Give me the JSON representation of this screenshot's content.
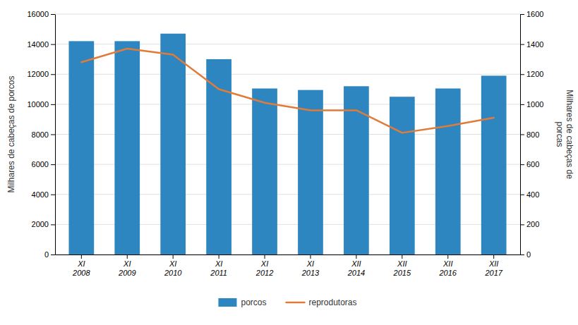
{
  "chart_data": {
    "type": "bar",
    "categories": [
      "XI\n2008",
      "XI\n2009",
      "XI\n2010",
      "XI\n2011",
      "XI\n2012",
      "XI\n2013",
      "XII\n2014",
      "XII\n2015",
      "XII\n2016",
      "XII\n2017"
    ],
    "series": [
      {
        "name": "porcos",
        "type": "bar",
        "color": "#2e86c1",
        "values": [
          14200,
          14200,
          14700,
          13000,
          11050,
          10950,
          11200,
          10500,
          11050,
          11900
        ]
      },
      {
        "name": "reprodutoras",
        "type": "line",
        "color": "#e07b39",
        "axis": "y2",
        "values": [
          1280,
          1370,
          1330,
          1100,
          1010,
          960,
          960,
          810,
          855,
          910
        ]
      }
    ],
    "y_label": "Milhares de cabeças de porcos",
    "y2_label": "Milhares de cabeças de\nporcas",
    "ylim": [
      0,
      16000
    ],
    "yticks": [
      0,
      2000,
      4000,
      6000,
      8000,
      10000,
      12000,
      14000,
      16000
    ],
    "y2lim": [
      0,
      1600
    ],
    "y2ticks": [
      0,
      200,
      400,
      600,
      800,
      1000,
      1200,
      1400,
      1600
    ],
    "grid": true,
    "legend": "bottom"
  }
}
